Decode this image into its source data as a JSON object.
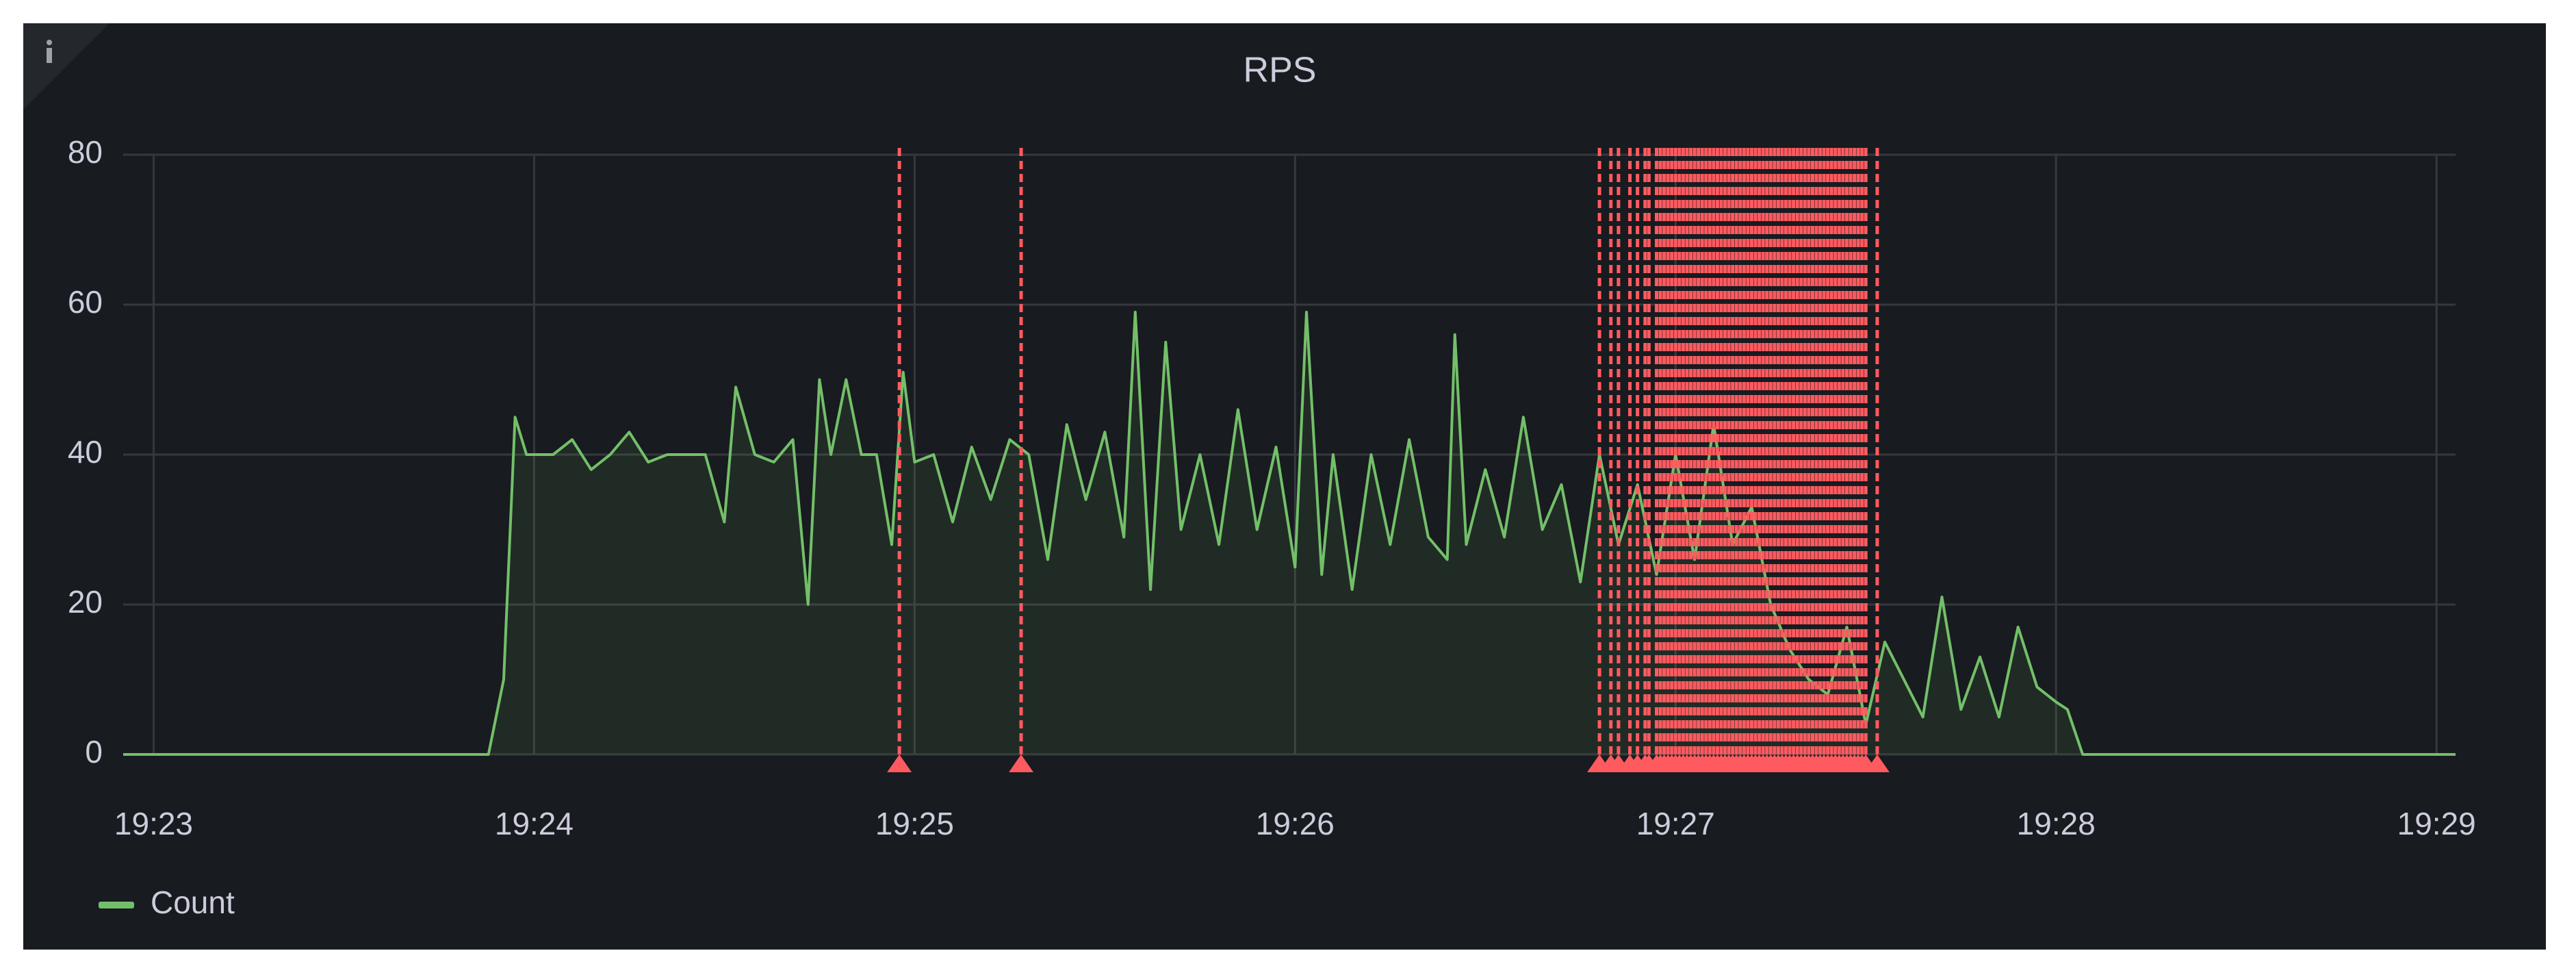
{
  "chart_data": {
    "type": "line",
    "title": "RPS",
    "x": [
      22.92,
      23.88,
      23.92,
      23.95,
      23.98,
      24.05,
      24.1,
      24.15,
      24.2,
      24.25,
      24.3,
      24.35,
      24.4,
      24.45,
      24.5,
      24.53,
      24.58,
      24.63,
      24.68,
      24.72,
      24.75,
      24.78,
      24.82,
      24.86,
      24.9,
      24.94,
      24.97,
      25.0,
      25.05,
      25.1,
      25.15,
      25.2,
      25.25,
      25.3,
      25.35,
      25.4,
      25.45,
      25.5,
      25.55,
      25.58,
      25.62,
      25.66,
      25.7,
      25.75,
      25.8,
      25.85,
      25.9,
      25.95,
      26.0,
      26.03,
      26.07,
      26.1,
      26.15,
      26.2,
      26.25,
      26.3,
      26.35,
      26.4,
      26.42,
      26.45,
      26.5,
      26.55,
      26.6,
      26.65,
      26.7,
      26.75,
      26.8,
      26.85,
      26.9,
      26.95,
      27.0,
      27.05,
      27.1,
      27.15,
      27.2,
      27.25,
      27.3,
      27.35,
      27.4,
      27.45,
      27.5,
      27.55,
      27.6,
      27.65,
      27.7,
      27.75,
      27.8,
      27.85,
      27.9,
      27.95,
      28.0,
      28.03,
      28.07,
      29.05
    ],
    "series": [
      {
        "name": "Count",
        "color": "#73bf69",
        "values": [
          0,
          0,
          10,
          45,
          40,
          40,
          42,
          38,
          40,
          43,
          39,
          40,
          40,
          40,
          31,
          49,
          40,
          39,
          42,
          20,
          50,
          40,
          50,
          40,
          40,
          28,
          51,
          39,
          40,
          31,
          41,
          34,
          42,
          40,
          26,
          44,
          34,
          43,
          29,
          59,
          22,
          55,
          30,
          40,
          28,
          46,
          30,
          41,
          25,
          59,
          24,
          40,
          22,
          40,
          28,
          42,
          29,
          26,
          56,
          28,
          38,
          29,
          45,
          30,
          36,
          23,
          40,
          28,
          36,
          24,
          40,
          26,
          44,
          28,
          33,
          20,
          14,
          10,
          8,
          17,
          4,
          15,
          10,
          5,
          21,
          6,
          13,
          5,
          17,
          9,
          7,
          6,
          0,
          0
        ]
      }
    ],
    "annotations": [
      24.96,
      25.28,
      26.8,
      26.83,
      26.85,
      26.88,
      26.9,
      26.92,
      26.93,
      26.95,
      26.96,
      26.97,
      26.98,
      26.99,
      27.0,
      27.01,
      27.02,
      27.03,
      27.04,
      27.05,
      27.06,
      27.07,
      27.08,
      27.09,
      27.1,
      27.11,
      27.12,
      27.13,
      27.14,
      27.15,
      27.16,
      27.17,
      27.18,
      27.19,
      27.2,
      27.21,
      27.22,
      27.23,
      27.24,
      27.25,
      27.26,
      27.27,
      27.28,
      27.29,
      27.3,
      27.31,
      27.32,
      27.33,
      27.34,
      27.35,
      27.36,
      27.37,
      27.38,
      27.39,
      27.4,
      27.41,
      27.42,
      27.43,
      27.44,
      27.45,
      27.46,
      27.47,
      27.48,
      27.49,
      27.5,
      27.53
    ],
    "annotation_color": "#ff5a5f",
    "xlim": [
      22.92,
      29.05
    ],
    "xticks": [
      {
        "value": 23,
        "label": "19:23"
      },
      {
        "value": 24,
        "label": "19:24"
      },
      {
        "value": 25,
        "label": "19:25"
      },
      {
        "value": 26,
        "label": "19:26"
      },
      {
        "value": 27,
        "label": "19:27"
      },
      {
        "value": 28,
        "label": "19:28"
      },
      {
        "value": 29,
        "label": "19:29"
      }
    ],
    "ylim": [
      0,
      80
    ],
    "yticks": [
      0,
      20,
      40,
      60,
      80
    ],
    "grid": true,
    "legend": "bottom-left"
  }
}
